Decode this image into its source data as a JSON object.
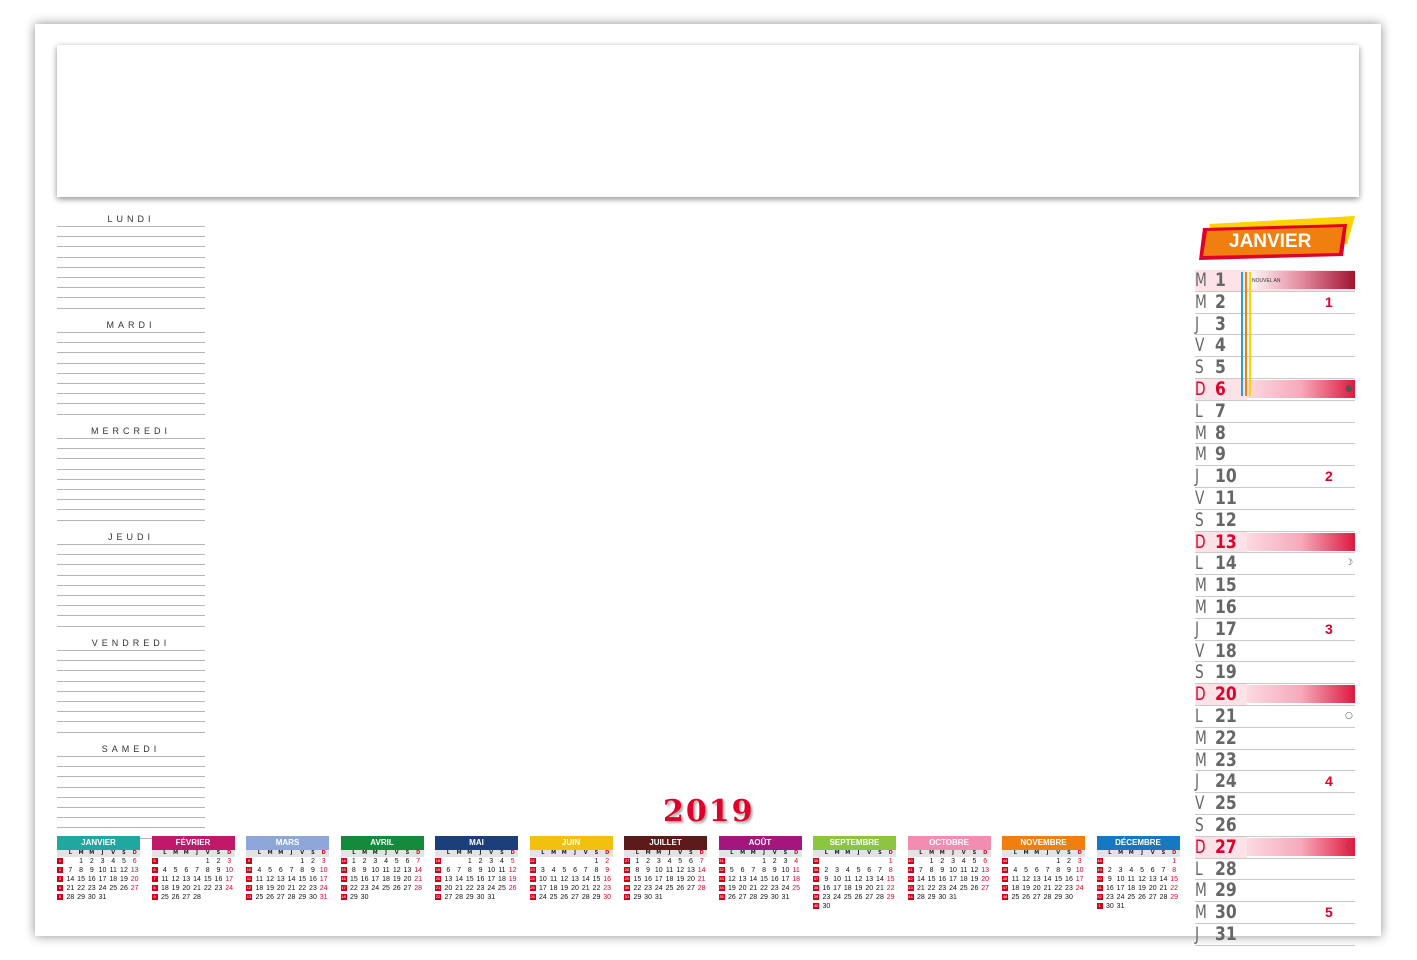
{
  "week_planner": [
    "LUNDI",
    "MARDI",
    "MERCREDI",
    "JEUDI",
    "VENDREDI",
    "SAMEDI"
  ],
  "year": "2019",
  "dow_header": [
    "L",
    "M",
    "M",
    "J",
    "V",
    "S",
    "D"
  ],
  "mini_months": [
    {
      "name": "JANVIER",
      "color": "#1fa8a0",
      "weeks": [
        {
          "wk": "1",
          "days": [
            "",
            "1",
            "2",
            "3",
            "4",
            "5",
            "6"
          ]
        },
        {
          "wk": "2",
          "days": [
            "7",
            "8",
            "9",
            "10",
            "11",
            "12",
            "13"
          ]
        },
        {
          "wk": "3",
          "days": [
            "14",
            "15",
            "16",
            "17",
            "18",
            "19",
            "20"
          ]
        },
        {
          "wk": "4",
          "days": [
            "21",
            "22",
            "23",
            "24",
            "25",
            "26",
            "27"
          ]
        },
        {
          "wk": "5",
          "days": [
            "28",
            "29",
            "30",
            "31",
            "",
            "",
            ""
          ]
        }
      ]
    },
    {
      "name": "FÉVRIER",
      "color": "#c2186a",
      "weeks": [
        {
          "wk": "5",
          "days": [
            "",
            "",
            "",
            "",
            "1",
            "2",
            "3"
          ]
        },
        {
          "wk": "6",
          "days": [
            "4",
            "5",
            "6",
            "7",
            "8",
            "9",
            "10"
          ]
        },
        {
          "wk": "7",
          "days": [
            "11",
            "12",
            "13",
            "14",
            "15",
            "16",
            "17"
          ]
        },
        {
          "wk": "8",
          "days": [
            "18",
            "19",
            "20",
            "21",
            "22",
            "23",
            "24"
          ]
        },
        {
          "wk": "9",
          "days": [
            "25",
            "26",
            "27",
            "28",
            "",
            "",
            ""
          ]
        }
      ]
    },
    {
      "name": "MARS",
      "color": "#8ea6d8",
      "weeks": [
        {
          "wk": "9",
          "days": [
            "",
            "",
            "",
            "",
            "1",
            "2",
            "3"
          ]
        },
        {
          "wk": "10",
          "days": [
            "4",
            "5",
            "6",
            "7",
            "8",
            "9",
            "10"
          ]
        },
        {
          "wk": "11",
          "days": [
            "11",
            "12",
            "13",
            "14",
            "15",
            "16",
            "17"
          ]
        },
        {
          "wk": "12",
          "days": [
            "18",
            "19",
            "20",
            "21",
            "22",
            "23",
            "24"
          ]
        },
        {
          "wk": "13",
          "days": [
            "25",
            "26",
            "27",
            "28",
            "29",
            "30",
            "31"
          ]
        }
      ]
    },
    {
      "name": "AVRIL",
      "color": "#138a3c",
      "weeks": [
        {
          "wk": "14",
          "days": [
            "1",
            "2",
            "3",
            "4",
            "5",
            "6",
            "7"
          ]
        },
        {
          "wk": "15",
          "days": [
            "8",
            "9",
            "10",
            "11",
            "12",
            "13",
            "14"
          ]
        },
        {
          "wk": "16",
          "days": [
            "15",
            "16",
            "17",
            "18",
            "19",
            "20",
            "21"
          ]
        },
        {
          "wk": "17",
          "days": [
            "22",
            "23",
            "24",
            "25",
            "26",
            "27",
            "28"
          ]
        },
        {
          "wk": "18",
          "days": [
            "29",
            "30",
            "",
            "",
            "",
            "",
            ""
          ]
        }
      ]
    },
    {
      "name": "MAI",
      "color": "#1b3f7a",
      "weeks": [
        {
          "wk": "18",
          "days": [
            "",
            "",
            "1",
            "2",
            "3",
            "4",
            "5"
          ]
        },
        {
          "wk": "19",
          "days": [
            "6",
            "7",
            "8",
            "9",
            "10",
            "11",
            "12"
          ]
        },
        {
          "wk": "20",
          "days": [
            "13",
            "14",
            "15",
            "16",
            "17",
            "18",
            "19"
          ]
        },
        {
          "wk": "21",
          "days": [
            "20",
            "21",
            "22",
            "23",
            "24",
            "25",
            "26"
          ]
        },
        {
          "wk": "22",
          "days": [
            "27",
            "28",
            "29",
            "30",
            "31",
            "",
            ""
          ]
        }
      ]
    },
    {
      "name": "JUIN",
      "color": "#f2c10f",
      "weeks": [
        {
          "wk": "22",
          "days": [
            "",
            "",
            "",
            "",
            "",
            "1",
            "2"
          ]
        },
        {
          "wk": "23",
          "days": [
            "3",
            "4",
            "5",
            "6",
            "7",
            "8",
            "9"
          ]
        },
        {
          "wk": "24",
          "days": [
            "10",
            "11",
            "12",
            "13",
            "14",
            "15",
            "16"
          ]
        },
        {
          "wk": "25",
          "days": [
            "17",
            "18",
            "19",
            "20",
            "21",
            "22",
            "23"
          ]
        },
        {
          "wk": "26",
          "days": [
            "24",
            "25",
            "26",
            "27",
            "28",
            "29",
            "30"
          ]
        }
      ]
    },
    {
      "name": "JUILLET",
      "color": "#5c1a1a",
      "weeks": [
        {
          "wk": "27",
          "days": [
            "1",
            "2",
            "3",
            "4",
            "5",
            "6",
            "7"
          ]
        },
        {
          "wk": "28",
          "days": [
            "8",
            "9",
            "10",
            "11",
            "12",
            "13",
            "14"
          ]
        },
        {
          "wk": "29",
          "days": [
            "15",
            "16",
            "17",
            "18",
            "19",
            "20",
            "21"
          ]
        },
        {
          "wk": "30",
          "days": [
            "22",
            "23",
            "24",
            "25",
            "26",
            "27",
            "28"
          ]
        },
        {
          "wk": "31",
          "days": [
            "29",
            "30",
            "31",
            "",
            "",
            "",
            ""
          ]
        }
      ]
    },
    {
      "name": "AOÛT",
      "color": "#a3177d",
      "weeks": [
        {
          "wk": "31",
          "days": [
            "",
            "",
            "",
            "1",
            "2",
            "3",
            "4"
          ]
        },
        {
          "wk": "32",
          "days": [
            "5",
            "6",
            "7",
            "8",
            "9",
            "10",
            "11"
          ]
        },
        {
          "wk": "33",
          "days": [
            "12",
            "13",
            "14",
            "15",
            "16",
            "17",
            "18"
          ]
        },
        {
          "wk": "34",
          "days": [
            "19",
            "20",
            "21",
            "22",
            "23",
            "24",
            "25"
          ]
        },
        {
          "wk": "35",
          "days": [
            "26",
            "27",
            "28",
            "29",
            "30",
            "31",
            ""
          ]
        }
      ]
    },
    {
      "name": "SEPTEMBRE",
      "color": "#8cc63f",
      "weeks": [
        {
          "wk": "35",
          "days": [
            "",
            "",
            "",
            "",
            "",
            "",
            "1"
          ]
        },
        {
          "wk": "36",
          "days": [
            "2",
            "3",
            "4",
            "5",
            "6",
            "7",
            "8"
          ]
        },
        {
          "wk": "37",
          "days": [
            "9",
            "10",
            "11",
            "12",
            "13",
            "14",
            "15"
          ]
        },
        {
          "wk": "38",
          "days": [
            "16",
            "17",
            "18",
            "19",
            "20",
            "21",
            "22"
          ]
        },
        {
          "wk": "39",
          "days": [
            "23",
            "24",
            "25",
            "26",
            "27",
            "28",
            "29"
          ]
        },
        {
          "wk": "40",
          "days": [
            "30",
            "",
            "",
            "",
            "",
            "",
            ""
          ]
        }
      ]
    },
    {
      "name": "OCTOBRE",
      "color": "#f28db2",
      "weeks": [
        {
          "wk": "40",
          "days": [
            "",
            "1",
            "2",
            "3",
            "4",
            "5",
            "6"
          ]
        },
        {
          "wk": "41",
          "days": [
            "7",
            "8",
            "9",
            "10",
            "11",
            "12",
            "13"
          ]
        },
        {
          "wk": "42",
          "days": [
            "14",
            "15",
            "16",
            "17",
            "18",
            "19",
            "20"
          ]
        },
        {
          "wk": "43",
          "days": [
            "21",
            "22",
            "23",
            "24",
            "25",
            "26",
            "27"
          ]
        },
        {
          "wk": "44",
          "days": [
            "28",
            "29",
            "30",
            "31",
            "",
            "",
            ""
          ]
        }
      ]
    },
    {
      "name": "NOVEMBRE",
      "color": "#f07f0f",
      "weeks": [
        {
          "wk": "44",
          "days": [
            "",
            "",
            "",
            "",
            "1",
            "2",
            "3"
          ]
        },
        {
          "wk": "45",
          "days": [
            "4",
            "5",
            "6",
            "7",
            "8",
            "9",
            "10"
          ]
        },
        {
          "wk": "46",
          "days": [
            "11",
            "12",
            "13",
            "14",
            "15",
            "16",
            "17"
          ]
        },
        {
          "wk": "47",
          "days": [
            "18",
            "19",
            "20",
            "21",
            "22",
            "23",
            "24"
          ]
        },
        {
          "wk": "48",
          "days": [
            "25",
            "26",
            "27",
            "28",
            "29",
            "30",
            ""
          ]
        }
      ]
    },
    {
      "name": "DÉCEMBRE",
      "color": "#1479c2",
      "weeks": [
        {
          "wk": "48",
          "days": [
            "",
            "",
            "",
            "",
            "",
            "",
            "1"
          ]
        },
        {
          "wk": "49",
          "days": [
            "2",
            "3",
            "4",
            "5",
            "6",
            "7",
            "8"
          ]
        },
        {
          "wk": "50",
          "days": [
            "9",
            "10",
            "11",
            "12",
            "13",
            "14",
            "15"
          ]
        },
        {
          "wk": "51",
          "days": [
            "16",
            "17",
            "18",
            "19",
            "20",
            "21",
            "22"
          ]
        },
        {
          "wk": "52",
          "days": [
            "23",
            "24",
            "25",
            "26",
            "27",
            "28",
            "29"
          ]
        },
        {
          "wk": "1",
          "days": [
            "30",
            "31",
            "",
            "",
            "",
            "",
            ""
          ]
        }
      ]
    }
  ],
  "big_month": {
    "name": "JANVIER",
    "holiday_label": "NOUVEL AN",
    "days": [
      {
        "dow": "M",
        "num": "1",
        "type": "hol"
      },
      {
        "dow": "M",
        "num": "2",
        "wk": "1"
      },
      {
        "dow": "J",
        "num": "3"
      },
      {
        "dow": "V",
        "num": "4"
      },
      {
        "dow": "S",
        "num": "5"
      },
      {
        "dow": "D",
        "num": "6",
        "type": "sun",
        "moon": "●"
      },
      {
        "dow": "L",
        "num": "7"
      },
      {
        "dow": "M",
        "num": "8"
      },
      {
        "dow": "M",
        "num": "9"
      },
      {
        "dow": "J",
        "num": "10",
        "wk": "2"
      },
      {
        "dow": "V",
        "num": "11"
      },
      {
        "dow": "S",
        "num": "12"
      },
      {
        "dow": "D",
        "num": "13",
        "type": "sun"
      },
      {
        "dow": "L",
        "num": "14",
        "moon": "☽"
      },
      {
        "dow": "M",
        "num": "15"
      },
      {
        "dow": "M",
        "num": "16"
      },
      {
        "dow": "J",
        "num": "17",
        "wk": "3"
      },
      {
        "dow": "V",
        "num": "18"
      },
      {
        "dow": "S",
        "num": "19"
      },
      {
        "dow": "D",
        "num": "20",
        "type": "sun"
      },
      {
        "dow": "L",
        "num": "21",
        "moon": "○"
      },
      {
        "dow": "M",
        "num": "22"
      },
      {
        "dow": "M",
        "num": "23"
      },
      {
        "dow": "J",
        "num": "24",
        "wk": "4"
      },
      {
        "dow": "V",
        "num": "25"
      },
      {
        "dow": "S",
        "num": "26"
      },
      {
        "dow": "D",
        "num": "27",
        "type": "sun",
        "moon": "☾"
      },
      {
        "dow": "L",
        "num": "28"
      },
      {
        "dow": "M",
        "num": "29"
      },
      {
        "dow": "M",
        "num": "30",
        "wk": "5"
      },
      {
        "dow": "J",
        "num": "31"
      }
    ]
  },
  "colors": {
    "accent_red": "#e0002a",
    "banner_orange": "#f07f0f",
    "banner_yellow": "#ffd200"
  }
}
